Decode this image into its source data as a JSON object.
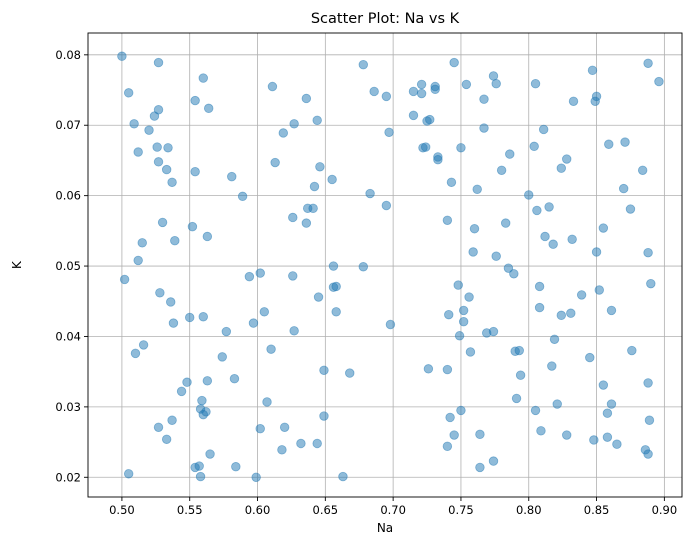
{
  "chart_data": {
    "type": "scatter",
    "title": "Scatter Plot: Na vs K",
    "xlabel": "Na",
    "ylabel": "K",
    "xlim": [
      0.475,
      0.913
    ],
    "ylim": [
      0.0172,
      0.0831
    ],
    "xticks": [
      0.5,
      0.55,
      0.6,
      0.65,
      0.7,
      0.75,
      0.8,
      0.85,
      0.9
    ],
    "xtick_labels": [
      "0.50",
      "0.55",
      "0.60",
      "0.65",
      "0.70",
      "0.75",
      "0.80",
      "0.85",
      "0.90"
    ],
    "yticks": [
      0.02,
      0.03,
      0.04,
      0.05,
      0.06,
      0.07,
      0.08
    ],
    "ytick_labels": [
      "0.02",
      "0.03",
      "0.04",
      "0.05",
      "0.06",
      "0.07",
      "0.08"
    ],
    "grid": true,
    "color": "#1f77b4",
    "points": [
      [
        0.5,
        0.0798
      ],
      [
        0.527,
        0.0789
      ],
      [
        0.56,
        0.0767
      ],
      [
        0.554,
        0.0735
      ],
      [
        0.564,
        0.0724
      ],
      [
        0.505,
        0.0746
      ],
      [
        0.509,
        0.0702
      ],
      [
        0.52,
        0.0693
      ],
      [
        0.524,
        0.0713
      ],
      [
        0.527,
        0.0722
      ],
      [
        0.512,
        0.0662
      ],
      [
        0.526,
        0.0669
      ],
      [
        0.534,
        0.0668
      ],
      [
        0.527,
        0.0648
      ],
      [
        0.533,
        0.0637
      ],
      [
        0.537,
        0.0619
      ],
      [
        0.554,
        0.0634
      ],
      [
        0.581,
        0.0627
      ],
      [
        0.589,
        0.0599
      ],
      [
        0.611,
        0.0755
      ],
      [
        0.636,
        0.0738
      ],
      [
        0.644,
        0.0707
      ],
      [
        0.627,
        0.0702
      ],
      [
        0.619,
        0.0689
      ],
      [
        0.613,
        0.0647
      ],
      [
        0.646,
        0.0641
      ],
      [
        0.642,
        0.0613
      ],
      [
        0.637,
        0.0582
      ],
      [
        0.641,
        0.0582
      ],
      [
        0.655,
        0.0623
      ],
      [
        0.678,
        0.0786
      ],
      [
        0.686,
        0.0748
      ],
      [
        0.695,
        0.0741
      ],
      [
        0.697,
        0.069
      ],
      [
        0.683,
        0.0603
      ],
      [
        0.695,
        0.0586
      ],
      [
        0.515,
        0.0533
      ],
      [
        0.512,
        0.0508
      ],
      [
        0.53,
        0.0562
      ],
      [
        0.539,
        0.0536
      ],
      [
        0.552,
        0.0556
      ],
      [
        0.563,
        0.0542
      ],
      [
        0.502,
        0.0481
      ],
      [
        0.528,
        0.0462
      ],
      [
        0.536,
        0.0449
      ],
      [
        0.55,
        0.0427
      ],
      [
        0.538,
        0.0419
      ],
      [
        0.56,
        0.0428
      ],
      [
        0.51,
        0.0376
      ],
      [
        0.516,
        0.0388
      ],
      [
        0.594,
        0.0485
      ],
      [
        0.602,
        0.049
      ],
      [
        0.626,
        0.0486
      ],
      [
        0.626,
        0.0569
      ],
      [
        0.636,
        0.0561
      ],
      [
        0.605,
        0.0435
      ],
      [
        0.597,
        0.0419
      ],
      [
        0.577,
        0.0407
      ],
      [
        0.627,
        0.0408
      ],
      [
        0.645,
        0.0456
      ],
      [
        0.656,
        0.05
      ],
      [
        0.656,
        0.047
      ],
      [
        0.658,
        0.0471
      ],
      [
        0.658,
        0.0435
      ],
      [
        0.678,
        0.0499
      ],
      [
        0.698,
        0.0417
      ],
      [
        0.61,
        0.0382
      ],
      [
        0.574,
        0.0371
      ],
      [
        0.563,
        0.0337
      ],
      [
        0.548,
        0.0335
      ],
      [
        0.544,
        0.0322
      ],
      [
        0.583,
        0.034
      ],
      [
        0.559,
        0.0309
      ],
      [
        0.558,
        0.0297
      ],
      [
        0.562,
        0.0293
      ],
      [
        0.56,
        0.0289
      ],
      [
        0.537,
        0.0281
      ],
      [
        0.527,
        0.0271
      ],
      [
        0.533,
        0.0254
      ],
      [
        0.554,
        0.0214
      ],
      [
        0.557,
        0.0216
      ],
      [
        0.558,
        0.0201
      ],
      [
        0.565,
        0.0233
      ],
      [
        0.584,
        0.0215
      ],
      [
        0.505,
        0.0205
      ],
      [
        0.599,
        0.02
      ],
      [
        0.602,
        0.0269
      ],
      [
        0.607,
        0.0307
      ],
      [
        0.62,
        0.0271
      ],
      [
        0.618,
        0.0239
      ],
      [
        0.632,
        0.0248
      ],
      [
        0.644,
        0.0248
      ],
      [
        0.649,
        0.0287
      ],
      [
        0.649,
        0.0352
      ],
      [
        0.668,
        0.0348
      ],
      [
        0.663,
        0.0201
      ],
      [
        0.721,
        0.0758
      ],
      [
        0.715,
        0.0748
      ],
      [
        0.721,
        0.0745
      ],
      [
        0.731,
        0.0755
      ],
      [
        0.731,
        0.0751
      ],
      [
        0.715,
        0.0714
      ],
      [
        0.725,
        0.0706
      ],
      [
        0.727,
        0.0708
      ],
      [
        0.722,
        0.0668
      ],
      [
        0.724,
        0.0669
      ],
      [
        0.733,
        0.0655
      ],
      [
        0.733,
        0.0651
      ],
      [
        0.743,
        0.0619
      ],
      [
        0.745,
        0.0789
      ],
      [
        0.754,
        0.0758
      ],
      [
        0.767,
        0.0737
      ],
      [
        0.774,
        0.077
      ],
      [
        0.776,
        0.0759
      ],
      [
        0.767,
        0.0696
      ],
      [
        0.75,
        0.0668
      ],
      [
        0.78,
        0.0636
      ],
      [
        0.786,
        0.0659
      ],
      [
        0.762,
        0.0609
      ],
      [
        0.74,
        0.0565
      ],
      [
        0.76,
        0.0553
      ],
      [
        0.759,
        0.052
      ],
      [
        0.776,
        0.0514
      ],
      [
        0.783,
        0.0561
      ],
      [
        0.785,
        0.0497
      ],
      [
        0.789,
        0.0489
      ],
      [
        0.748,
        0.0473
      ],
      [
        0.756,
        0.0456
      ],
      [
        0.749,
        0.0401
      ],
      [
        0.752,
        0.0421
      ],
      [
        0.752,
        0.0437
      ],
      [
        0.741,
        0.0431
      ],
      [
        0.757,
        0.0378
      ],
      [
        0.769,
        0.0405
      ],
      [
        0.774,
        0.0407
      ],
      [
        0.79,
        0.0379
      ],
      [
        0.793,
        0.038
      ],
      [
        0.794,
        0.0345
      ],
      [
        0.726,
        0.0354
      ],
      [
        0.74,
        0.0353
      ],
      [
        0.742,
        0.0285
      ],
      [
        0.745,
        0.026
      ],
      [
        0.74,
        0.0244
      ],
      [
        0.75,
        0.0295
      ],
      [
        0.764,
        0.0261
      ],
      [
        0.764,
        0.0214
      ],
      [
        0.774,
        0.0223
      ],
      [
        0.791,
        0.0312
      ],
      [
        0.805,
        0.0759
      ],
      [
        0.811,
        0.0694
      ],
      [
        0.804,
        0.067
      ],
      [
        0.8,
        0.0601
      ],
      [
        0.806,
        0.0579
      ],
      [
        0.815,
        0.0584
      ],
      [
        0.812,
        0.0542
      ],
      [
        0.818,
        0.0531
      ],
      [
        0.808,
        0.0471
      ],
      [
        0.808,
        0.0441
      ],
      [
        0.819,
        0.0396
      ],
      [
        0.817,
        0.0358
      ],
      [
        0.821,
        0.0304
      ],
      [
        0.805,
        0.0295
      ],
      [
        0.809,
        0.0266
      ],
      [
        0.833,
        0.0734
      ],
      [
        0.847,
        0.0778
      ],
      [
        0.85,
        0.0741
      ],
      [
        0.849,
        0.0734
      ],
      [
        0.824,
        0.0639
      ],
      [
        0.828,
        0.0652
      ],
      [
        0.832,
        0.0538
      ],
      [
        0.839,
        0.0459
      ],
      [
        0.85,
        0.052
      ],
      [
        0.852,
        0.0466
      ],
      [
        0.824,
        0.043
      ],
      [
        0.831,
        0.0433
      ],
      [
        0.845,
        0.037
      ],
      [
        0.855,
        0.0331
      ],
      [
        0.858,
        0.0291
      ],
      [
        0.861,
        0.0304
      ],
      [
        0.828,
        0.026
      ],
      [
        0.848,
        0.0253
      ],
      [
        0.858,
        0.0257
      ],
      [
        0.865,
        0.0247
      ],
      [
        0.859,
        0.0673
      ],
      [
        0.871,
        0.0676
      ],
      [
        0.87,
        0.061
      ],
      [
        0.875,
        0.0581
      ],
      [
        0.855,
        0.0554
      ],
      [
        0.861,
        0.0437
      ],
      [
        0.876,
        0.038
      ],
      [
        0.888,
        0.0788
      ],
      [
        0.896,
        0.0762
      ],
      [
        0.884,
        0.0636
      ],
      [
        0.888,
        0.0519
      ],
      [
        0.89,
        0.0475
      ],
      [
        0.888,
        0.0334
      ],
      [
        0.889,
        0.0281
      ],
      [
        0.886,
        0.0239
      ],
      [
        0.888,
        0.0233
      ]
    ]
  }
}
